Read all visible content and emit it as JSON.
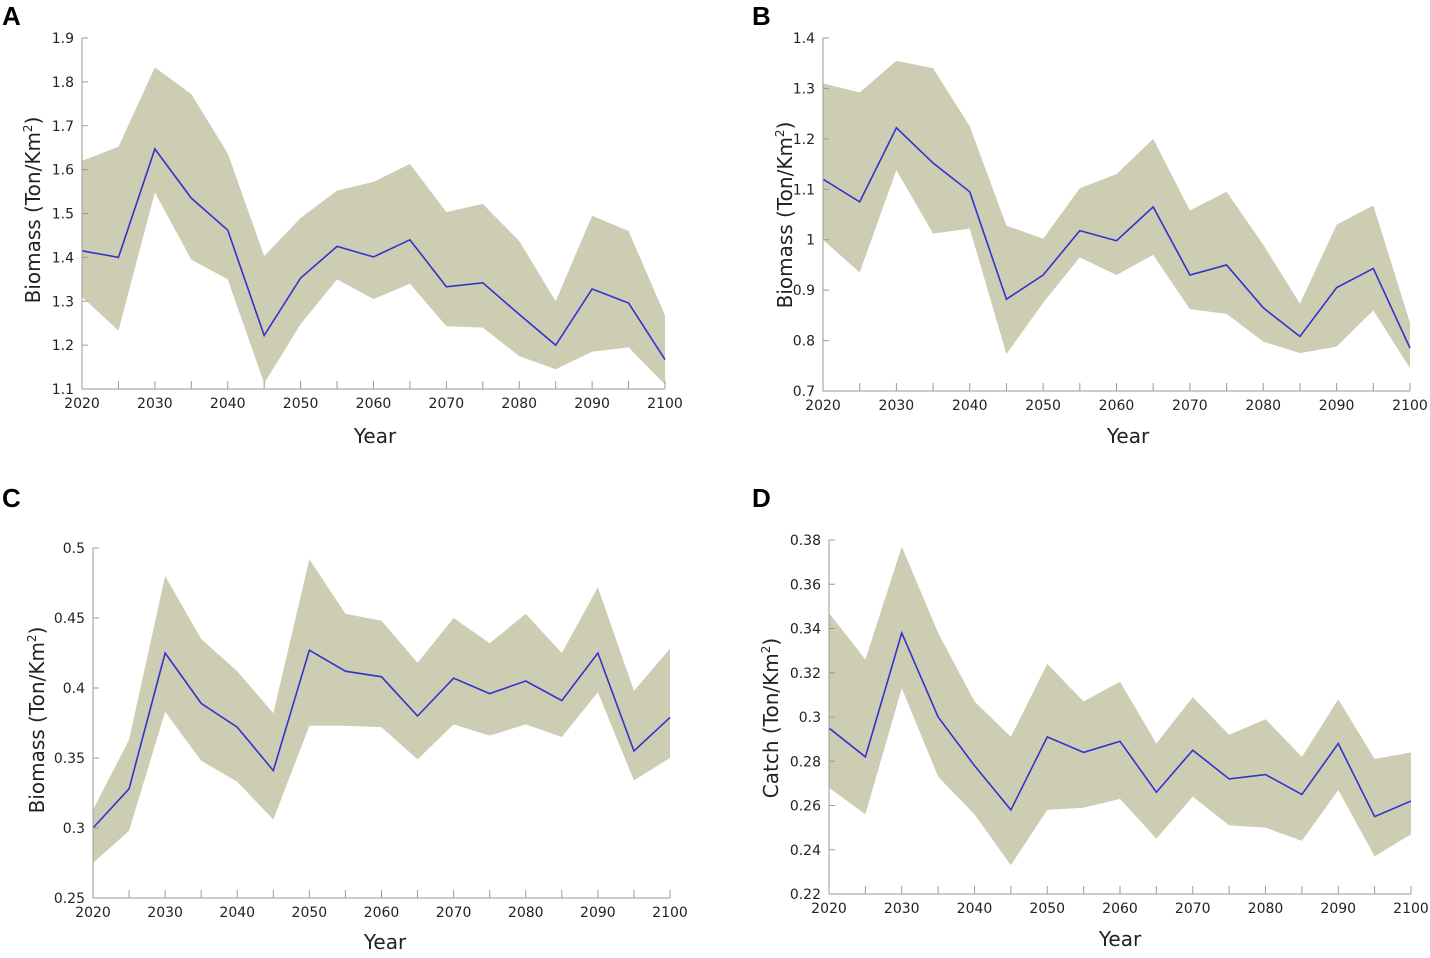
{
  "chart_data": [
    {
      "panel": "A",
      "type": "line",
      "x": [
        2020,
        2025,
        2030,
        2035,
        2040,
        2045,
        2050,
        2055,
        2060,
        2065,
        2070,
        2075,
        2080,
        2085,
        2090,
        2095,
        2100
      ],
      "series": [
        {
          "name": "mean",
          "values": [
            1.415,
            1.4,
            1.647,
            1.535,
            1.462,
            1.222,
            1.353,
            1.425,
            1.401,
            1.44,
            1.333,
            1.342,
            1.27,
            1.2,
            1.328,
            1.296,
            1.167
          ]
        },
        {
          "name": "upper",
          "values": [
            1.62,
            1.652,
            1.833,
            1.772,
            1.637,
            1.403,
            1.49,
            1.552,
            1.572,
            1.613,
            1.503,
            1.522,
            1.437,
            1.3,
            1.495,
            1.46,
            1.268
          ]
        },
        {
          "name": "lower",
          "values": [
            1.31,
            1.233,
            1.548,
            1.395,
            1.35,
            1.113,
            1.248,
            1.35,
            1.305,
            1.34,
            1.243,
            1.24,
            1.175,
            1.145,
            1.185,
            1.195,
            1.11
          ]
        }
      ],
      "xlim": [
        2020,
        2100
      ],
      "ylim": [
        1.1,
        1.9
      ],
      "xticks": [
        "2020",
        "2030",
        "2040",
        "2050",
        "2060",
        "2070",
        "2080",
        "2090",
        "2100"
      ],
      "yticks": [
        "1.1",
        "1.2",
        "1.3",
        "1.4",
        "1.5",
        "1.6",
        "1.7",
        "1.8",
        "1.9"
      ],
      "xlabel": "Year",
      "ylabel_main": "Biomass (Ton/Km",
      "ylabel_sup": "2",
      "ylabel_end": ")"
    },
    {
      "panel": "B",
      "type": "line",
      "x": [
        2020,
        2025,
        2030,
        2035,
        2040,
        2045,
        2050,
        2055,
        2060,
        2065,
        2070,
        2075,
        2080,
        2085,
        2090,
        2095,
        2100
      ],
      "series": [
        {
          "name": "mean",
          "values": [
            1.12,
            1.075,
            1.222,
            1.152,
            1.095,
            0.882,
            0.93,
            1.018,
            0.998,
            1.065,
            0.93,
            0.95,
            0.865,
            0.808,
            0.905,
            0.943,
            0.785
          ]
        },
        {
          "name": "upper",
          "values": [
            1.31,
            1.292,
            1.355,
            1.34,
            1.225,
            1.028,
            1.002,
            1.102,
            1.13,
            1.2,
            1.058,
            1.095,
            0.99,
            0.873,
            1.03,
            1.068,
            0.835
          ]
        },
        {
          "name": "lower",
          "values": [
            1.0,
            0.935,
            1.138,
            1.012,
            1.022,
            0.773,
            0.875,
            0.965,
            0.93,
            0.97,
            0.862,
            0.853,
            0.798,
            0.775,
            0.788,
            0.86,
            0.745
          ]
        }
      ],
      "xlim": [
        2020,
        2100
      ],
      "ylim": [
        0.7,
        1.4
      ],
      "xticks": [
        "2020",
        "2030",
        "2040",
        "2050",
        "2060",
        "2070",
        "2080",
        "2090",
        "2100"
      ],
      "yticks": [
        "0.7",
        "0.8",
        "0.9",
        "1",
        "1.1",
        "1.2",
        "1.3",
        "1.4"
      ],
      "xlabel": "Year",
      "ylabel_main": "Biomass (Ton/Km",
      "ylabel_sup": "2",
      "ylabel_end": ")"
    },
    {
      "panel": "C",
      "type": "line",
      "x": [
        2020,
        2025,
        2030,
        2035,
        2040,
        2045,
        2050,
        2055,
        2060,
        2065,
        2070,
        2075,
        2080,
        2085,
        2090,
        2095,
        2100
      ],
      "series": [
        {
          "name": "mean",
          "values": [
            0.3,
            0.328,
            0.425,
            0.389,
            0.372,
            0.341,
            0.427,
            0.412,
            0.408,
            0.38,
            0.407,
            0.396,
            0.405,
            0.391,
            0.425,
            0.355,
            0.379
          ]
        },
        {
          "name": "upper",
          "values": [
            0.313,
            0.363,
            0.48,
            0.435,
            0.412,
            0.382,
            0.492,
            0.453,
            0.448,
            0.418,
            0.45,
            0.432,
            0.453,
            0.425,
            0.472,
            0.398,
            0.428
          ]
        },
        {
          "name": "lower",
          "values": [
            0.275,
            0.298,
            0.383,
            0.348,
            0.333,
            0.306,
            0.373,
            0.373,
            0.372,
            0.349,
            0.374,
            0.366,
            0.374,
            0.365,
            0.397,
            0.334,
            0.35
          ]
        }
      ],
      "xlim": [
        2020,
        2100
      ],
      "ylim": [
        0.25,
        0.5
      ],
      "xticks": [
        "2020",
        "2030",
        "2040",
        "2050",
        "2060",
        "2070",
        "2080",
        "2090",
        "2100"
      ],
      "yticks": [
        "0.25",
        "0.3",
        "0.35",
        "0.4",
        "0.45",
        "0.5"
      ],
      "xlabel": "Year",
      "ylabel_main": "Biomass (Ton/Km",
      "ylabel_sup": "2",
      "ylabel_end": ")"
    },
    {
      "panel": "D",
      "type": "line",
      "x": [
        2020,
        2025,
        2030,
        2035,
        2040,
        2045,
        2050,
        2055,
        2060,
        2065,
        2070,
        2075,
        2080,
        2085,
        2090,
        2095,
        2100
      ],
      "series": [
        {
          "name": "mean",
          "values": [
            0.295,
            0.282,
            0.338,
            0.3,
            0.278,
            0.258,
            0.291,
            0.284,
            0.289,
            0.266,
            0.285,
            0.272,
            0.274,
            0.265,
            0.288,
            0.255,
            0.262
          ]
        },
        {
          "name": "upper",
          "values": [
            0.347,
            0.326,
            0.377,
            0.338,
            0.307,
            0.291,
            0.324,
            0.307,
            0.316,
            0.288,
            0.309,
            0.292,
            0.299,
            0.282,
            0.308,
            0.281,
            0.284
          ]
        },
        {
          "name": "lower",
          "values": [
            0.268,
            0.256,
            0.313,
            0.273,
            0.256,
            0.233,
            0.258,
            0.259,
            0.263,
            0.245,
            0.264,
            0.251,
            0.25,
            0.244,
            0.267,
            0.237,
            0.247
          ]
        }
      ],
      "xlim": [
        2020,
        2100
      ],
      "ylim": [
        0.22,
        0.38
      ],
      "xticks": [
        "2020",
        "2030",
        "2040",
        "2050",
        "2060",
        "2070",
        "2080",
        "2090",
        "2100"
      ],
      "yticks": [
        "0.22",
        "0.24",
        "0.26",
        "0.28",
        "0.3",
        "0.32",
        "0.34",
        "0.36",
        "0.38"
      ],
      "xlabel": "Year",
      "ylabel_main": "Catch (Ton/Km",
      "ylabel_sup": "2",
      "ylabel_end": ")"
    }
  ],
  "colors": {
    "band": "#cdcdb4",
    "mean_line": "#3333cc",
    "axis": "#9a9a9a"
  }
}
